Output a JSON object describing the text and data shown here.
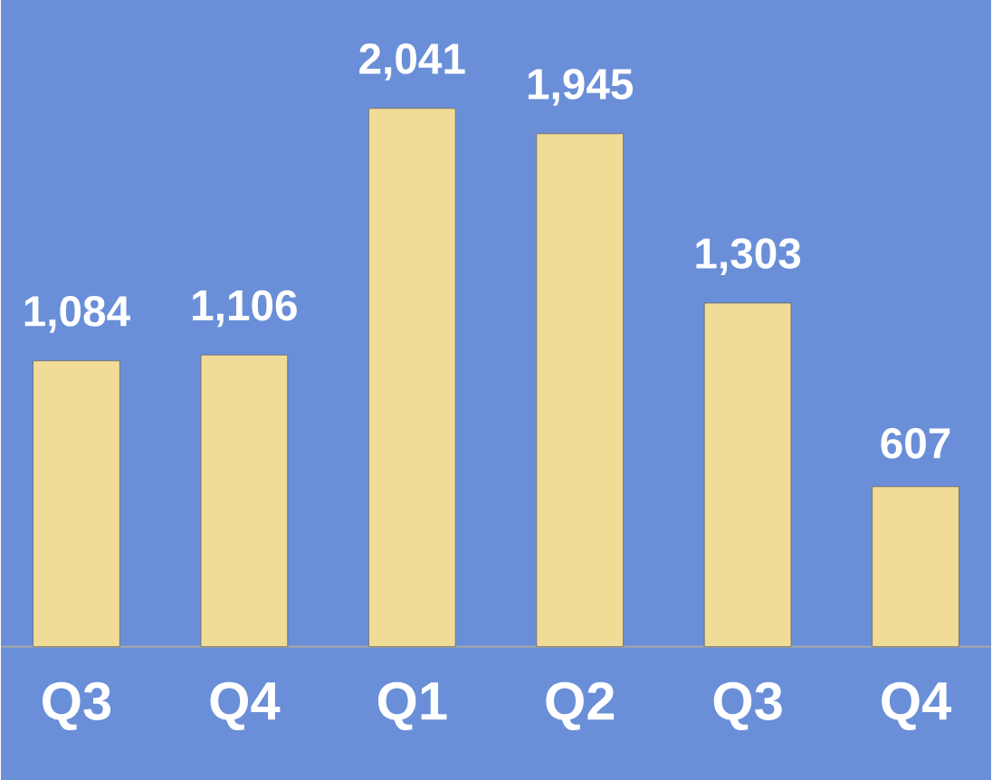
{
  "chart_data": {
    "type": "bar",
    "categories": [
      "Q3",
      "Q4",
      "Q1",
      "Q2",
      "Q3",
      "Q4"
    ],
    "values": [
      1084,
      1106,
      2041,
      1945,
      1303,
      607
    ],
    "value_labels": [
      "1,084",
      "1,106",
      "2,041",
      "1,945",
      "1,303",
      "607"
    ],
    "color": "#f0dc96"
  }
}
